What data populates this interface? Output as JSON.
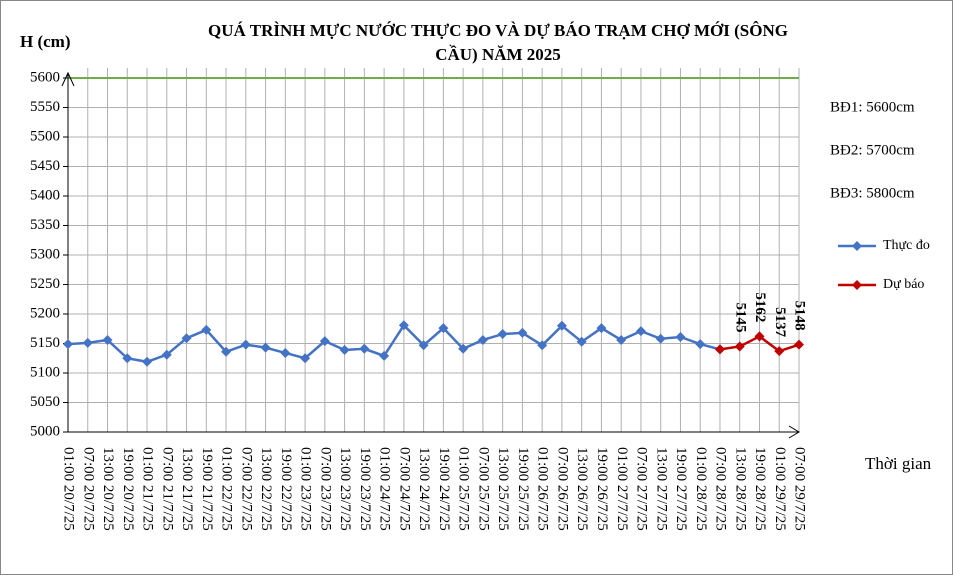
{
  "chart_data": {
    "type": "line",
    "title": "QUÁ TRÌNH MỰC NƯỚC THỰC ĐO VÀ DỰ BÁO TRẠM CHỢ MỚI (SÔNG CẦU) NĂM 2025",
    "y_label": "H (cm)",
    "x_label": "Thời gian",
    "categories": [
      "01:00 20/7/25",
      "07:00 20/7/25",
      "13:00 20/7/25",
      "19:00 20/7/25",
      "01:00 21/7/25",
      "07:00 21/7/25",
      "13:00 21/7/25",
      "19:00 21/7/25",
      "01:00 22/7/25",
      "07:00 22/7/25",
      "13:00 22/7/25",
      "19:00 22/7/25",
      "01:00 23/7/25",
      "07:00 23/7/25",
      "13:00 23/7/25",
      "19:00 23/7/25",
      "01:00 24/7/25",
      "07:00 24/7/25",
      "13:00 24/7/25",
      "19:00 24/7/25",
      "01:00 25/7/25",
      "07:00 25/7/25",
      "13:00 25/7/25",
      "19:00 25/7/25",
      "01:00 26/7/25",
      "07:00 26/7/25",
      "13:00 26/7/25",
      "19:00 26/7/25",
      "01:00 27/7/25",
      "07:00 27/7/25",
      "13:00 27/7/25",
      "19:00 27/7/25",
      "01:00 28/7/25",
      "07:00 28/7/25",
      "13:00 28/7/25",
      "19:00 28/7/25",
      "01:00 29/7/25",
      "07:00 29/7/25"
    ],
    "series": [
      {
        "name": "Thực đo",
        "color": "#4472c4",
        "values": [
          5149,
          5151,
          5156,
          5125,
          5119,
          5131,
          5159,
          5173,
          5136,
          5148,
          5143,
          5134,
          5125,
          5154,
          5139,
          5141,
          5129,
          5181,
          5147,
          5176,
          5141,
          5156,
          5166,
          5168,
          5147,
          5180,
          5153,
          5176,
          5156,
          5171,
          5158,
          5161,
          5149,
          5140,
          null,
          null,
          null,
          null
        ]
      },
      {
        "name": "Dự báo",
        "color": "#c00000",
        "values": [
          null,
          null,
          null,
          null,
          null,
          null,
          null,
          null,
          null,
          null,
          null,
          null,
          null,
          null,
          null,
          null,
          null,
          null,
          null,
          null,
          null,
          null,
          null,
          null,
          null,
          null,
          null,
          null,
          null,
          null,
          null,
          null,
          null,
          5140,
          5145,
          5162,
          5137,
          5148
        ],
        "value_labels": [
          null,
          null,
          null,
          null,
          null,
          null,
          null,
          null,
          null,
          null,
          null,
          null,
          null,
          null,
          null,
          null,
          null,
          null,
          null,
          null,
          null,
          null,
          null,
          null,
          null,
          null,
          null,
          null,
          null,
          null,
          null,
          null,
          null,
          null,
          "5145",
          "5162",
          "5137",
          "5148"
        ]
      }
    ],
    "threshold_line": {
      "value": 5600,
      "color": "#70ad47"
    },
    "annotations": [
      "BĐ1: 5600cm",
      "BĐ2: 5700cm",
      "BĐ3: 5800cm"
    ],
    "ylim": [
      5000,
      5600
    ],
    "yticks": [
      5000,
      5050,
      5100,
      5150,
      5200,
      5250,
      5300,
      5350,
      5400,
      5450,
      5500,
      5550,
      5600
    ],
    "grid": true
  }
}
